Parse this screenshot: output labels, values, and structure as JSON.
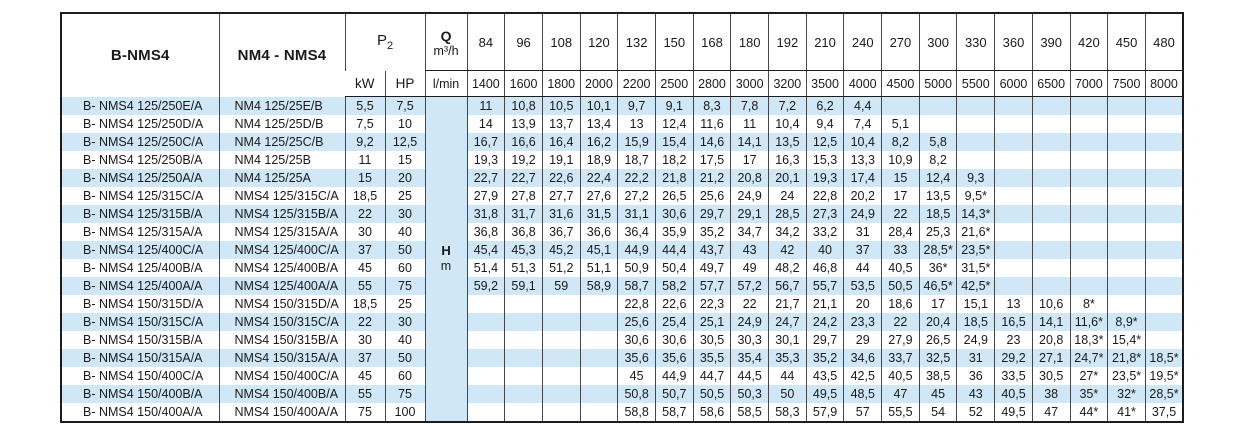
{
  "colors": {
    "stripe_blue": "#cfe7f7",
    "outer_border": "#1c1c1c",
    "grid_line": "#454545",
    "text": "#1a1a1a"
  },
  "table": {
    "col_b_header": "B-NMS4",
    "col_nm_header": "NM4 - NMS4",
    "p2": {
      "base": "P",
      "sub": "2"
    },
    "power_units": {
      "kw": "kW",
      "hp": "HP"
    },
    "q": {
      "symbol": "Q",
      "unit": "m³/h"
    },
    "flow_unit_lmin": "l/min",
    "head_label": {
      "symbol": "H",
      "unit": "m"
    },
    "flow_m3h": [
      "84",
      "96",
      "108",
      "120",
      "132",
      "150",
      "168",
      "180",
      "192",
      "210",
      "240",
      "270",
      "300",
      "330",
      "360",
      "390",
      "420",
      "450",
      "480"
    ],
    "flow_lmin": [
      "1400",
      "1600",
      "1800",
      "2000",
      "2200",
      "2500",
      "2800",
      "3000",
      "3200",
      "3500",
      "4000",
      "4500",
      "5000",
      "5500",
      "6000",
      "6500",
      "7000",
      "7500",
      "8000"
    ],
    "rows": [
      {
        "b_model": "B- NMS4 125/250E/A",
        "nm_model": "NM4 125/25E/B",
        "kw": "5,5",
        "hp": "7,5",
        "head_m": [
          "11",
          "10,8",
          "10,5",
          "10,1",
          "9,7",
          "9,1",
          "8,3",
          "7,8",
          "7,2",
          "6,2",
          "4,4",
          "",
          "",
          "",
          "",
          "",
          "",
          "",
          ""
        ]
      },
      {
        "b_model": "B- NMS4 125/250D/A",
        "nm_model": "NM4 125/25D/B",
        "kw": "7,5",
        "hp": "10",
        "head_m": [
          "14",
          "13,9",
          "13,7",
          "13,4",
          "13",
          "12,4",
          "11,6",
          "11",
          "10,4",
          "9,4",
          "7,4",
          "5,1",
          "",
          "",
          "",
          "",
          "",
          "",
          ""
        ]
      },
      {
        "b_model": "B- NMS4 125/250C/A",
        "nm_model": "NM4 125/25C/B",
        "kw": "9,2",
        "hp": "12,5",
        "head_m": [
          "16,7",
          "16,6",
          "16,4",
          "16,2",
          "15,9",
          "15,4",
          "14,6",
          "14,1",
          "13,5",
          "12,5",
          "10,4",
          "8,2",
          "5,8",
          "",
          "",
          "",
          "",
          "",
          ""
        ]
      },
      {
        "b_model": "B- NMS4 125/250B/A",
        "nm_model": "NM4 125/25B",
        "kw": "11",
        "hp": "15",
        "head_m": [
          "19,3",
          "19,2",
          "19,1",
          "18,9",
          "18,7",
          "18,2",
          "17,5",
          "17",
          "16,3",
          "15,3",
          "13,3",
          "10,9",
          "8,2",
          "",
          "",
          "",
          "",
          "",
          ""
        ]
      },
      {
        "b_model": "B- NMS4 125/250A/A",
        "nm_model": "NM4 125/25A",
        "kw": "15",
        "hp": "20",
        "head_m": [
          "22,7",
          "22,7",
          "22,6",
          "22,4",
          "22,2",
          "21,8",
          "21,2",
          "20,8",
          "20,1",
          "19,3",
          "17,4",
          "15",
          "12,4",
          "9,3",
          "",
          "",
          "",
          "",
          ""
        ]
      },
      {
        "b_model": "B- NMS4 125/315C/A",
        "nm_model": "NMS4 125/315C/A",
        "kw": "18,5",
        "hp": "25",
        "head_m": [
          "27,9",
          "27,8",
          "27,7",
          "27,6",
          "27,2",
          "26,5",
          "25,6",
          "24,9",
          "24",
          "22,8",
          "20,2",
          "17",
          "13,5",
          "9,5*",
          "",
          "",
          "",
          "",
          ""
        ]
      },
      {
        "b_model": "B- NMS4 125/315B/A",
        "nm_model": "NMS4 125/315B/A",
        "kw": "22",
        "hp": "30",
        "head_m": [
          "31,8",
          "31,7",
          "31,6",
          "31,5",
          "31,1",
          "30,6",
          "29,7",
          "29,1",
          "28,5",
          "27,3",
          "24,9",
          "22",
          "18,5",
          "14,3*",
          "",
          "",
          "",
          "",
          ""
        ]
      },
      {
        "b_model": "B- NMS4 125/315A/A",
        "nm_model": "NMS4 125/315A/A",
        "kw": "30",
        "hp": "40",
        "head_m": [
          "36,8",
          "36,8",
          "36,7",
          "36,6",
          "36,4",
          "35,9",
          "35,2",
          "34,7",
          "34,2",
          "33,2",
          "31",
          "28,4",
          "25,3",
          "21,6*",
          "",
          "",
          "",
          "",
          ""
        ]
      },
      {
        "b_model": "B- NMS4 125/400C/A",
        "nm_model": "NMS4 125/400C/A",
        "kw": "37",
        "hp": "50",
        "head_m": [
          "45,4",
          "45,3",
          "45,2",
          "45,1",
          "44,9",
          "44,4",
          "43,7",
          "43",
          "42",
          "40",
          "37",
          "33",
          "28,5*",
          "23,5*",
          "",
          "",
          "",
          "",
          ""
        ]
      },
      {
        "b_model": "B- NMS4 125/400B/A",
        "nm_model": "NMS4 125/400B/A",
        "kw": "45",
        "hp": "60",
        "head_m": [
          "51,4",
          "51,3",
          "51,2",
          "51,1",
          "50,9",
          "50,4",
          "49,7",
          "49",
          "48,2",
          "46,8",
          "44",
          "40,5",
          "36*",
          "31,5*",
          "",
          "",
          "",
          "",
          ""
        ]
      },
      {
        "b_model": "B- NMS4 125/400A/A",
        "nm_model": "NMS4 125/400A/A",
        "kw": "55",
        "hp": "75",
        "head_m": [
          "59,2",
          "59,1",
          "59",
          "58,9",
          "58,7",
          "58,2",
          "57,7",
          "57,2",
          "56,7",
          "55,7",
          "53,5",
          "50,5",
          "46,5*",
          "42,5*",
          "",
          "",
          "",
          "",
          ""
        ]
      },
      {
        "b_model": "B- NMS4 150/315D/A",
        "nm_model": "NMS4 150/315D/A",
        "kw": "18,5",
        "hp": "25",
        "head_m": [
          "",
          "",
          "",
          "",
          "22,8",
          "22,6",
          "22,3",
          "22",
          "21,7",
          "21,1",
          "20",
          "18,6",
          "17",
          "15,1",
          "13",
          "10,6",
          "8*",
          "",
          ""
        ]
      },
      {
        "b_model": "B- NMS4 150/315C/A",
        "nm_model": "NMS4 150/315C/A",
        "kw": "22",
        "hp": "30",
        "head_m": [
          "",
          "",
          "",
          "",
          "25,6",
          "25,4",
          "25,1",
          "24,9",
          "24,7",
          "24,2",
          "23,3",
          "22",
          "20,4",
          "18,5",
          "16,5",
          "14,1",
          "11,6*",
          "8,9*",
          ""
        ]
      },
      {
        "b_model": "B- NMS4 150/315B/A",
        "nm_model": "NMS4 150/315B/A",
        "kw": "30",
        "hp": "40",
        "head_m": [
          "",
          "",
          "",
          "",
          "30,6",
          "30,6",
          "30,5",
          "30,3",
          "30,1",
          "29,7",
          "29",
          "27,9",
          "26,5",
          "24,9",
          "23",
          "20,8",
          "18,3*",
          "15,4*",
          ""
        ]
      },
      {
        "b_model": "B- NMS4 150/315A/A",
        "nm_model": "NMS4 150/315A/A",
        "kw": "37",
        "hp": "50",
        "head_m": [
          "",
          "",
          "",
          "",
          "35,6",
          "35,6",
          "35,5",
          "35,4",
          "35,3",
          "35,2",
          "34,6",
          "33,7",
          "32,5",
          "31",
          "29,2",
          "27,1",
          "24,7*",
          "21,8*",
          "18,5*"
        ]
      },
      {
        "b_model": "B- NMS4 150/400C/A",
        "nm_model": "NMS4 150/400C/A",
        "kw": "45",
        "hp": "60",
        "head_m": [
          "",
          "",
          "",
          "",
          "45",
          "44,9",
          "44,7",
          "44,5",
          "44",
          "43,5",
          "42,5",
          "40,5",
          "38,5",
          "36",
          "33,5",
          "30,5",
          "27*",
          "23,5*",
          "19,5*"
        ]
      },
      {
        "b_model": "B- NMS4 150/400B/A",
        "nm_model": "NMS4 150/400B/A",
        "kw": "55",
        "hp": "75",
        "head_m": [
          "",
          "",
          "",
          "",
          "50,8",
          "50,7",
          "50,5",
          "50,3",
          "50",
          "49,5",
          "48,5",
          "47",
          "45",
          "43",
          "40,5",
          "38",
          "35*",
          "32*",
          "28,5*"
        ]
      },
      {
        "b_model": "B- NMS4 150/400A/A",
        "nm_model": "NMS4 150/400A/A",
        "kw": "75",
        "hp": "100",
        "head_m": [
          "",
          "",
          "",
          "",
          "58,8",
          "58,7",
          "58,6",
          "58,5",
          "58,3",
          "57,9",
          "57",
          "55,5",
          "54",
          "52",
          "49,5",
          "47",
          "44*",
          "41*",
          "37,5"
        ]
      }
    ]
  }
}
